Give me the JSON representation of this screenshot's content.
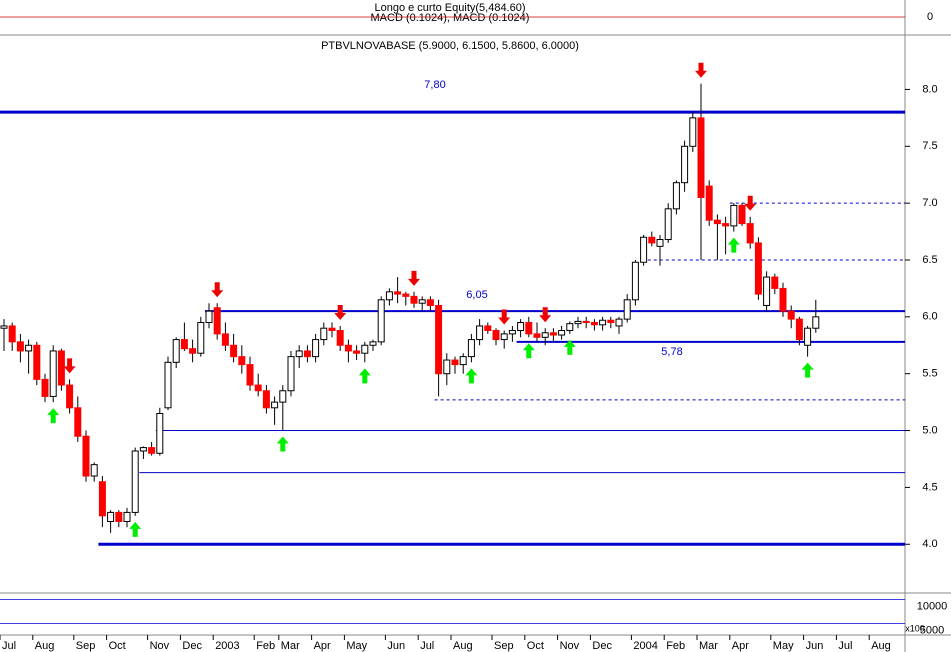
{
  "chart_data": {
    "type": "candlestick",
    "title": "PTBVLNOVABASE (5.9000, 6.1500, 5.8600, 6.0000)",
    "categories": [
      "Jul",
      null,
      null,
      null,
      "Aug",
      null,
      null,
      null,
      null,
      "Sep",
      null,
      null,
      null,
      "Oct",
      null,
      null,
      null,
      null,
      "Nov",
      null,
      null,
      null,
      "Dec",
      null,
      null,
      null,
      "2003",
      null,
      null,
      null,
      null,
      "Feb",
      null,
      null,
      "Mar",
      null,
      null,
      null,
      "Apr",
      null,
      null,
      null,
      "May",
      null,
      null,
      null,
      null,
      "Jun",
      null,
      null,
      null,
      "Jul",
      null,
      null,
      null,
      "Aug",
      null,
      null,
      null,
      null,
      "Sep",
      null,
      null,
      null,
      "Oct",
      null,
      null,
      null,
      "Nov",
      null,
      null,
      null,
      "Dec",
      null,
      null,
      null,
      null,
      "2004",
      null,
      null,
      null,
      "Feb",
      null,
      null,
      null,
      "Mar",
      null,
      null,
      null,
      "Apr",
      null,
      null,
      null,
      null,
      "May",
      null,
      null,
      null,
      "Jun",
      null,
      null,
      null,
      "Jul",
      null,
      null,
      null,
      "Aug",
      null,
      null,
      null
    ],
    "open": [
      5.9,
      5.92,
      5.78,
      5.7,
      5.75,
      5.45,
      5.3,
      5.7,
      5.4,
      5.2,
      4.95,
      4.6,
      4.55,
      4.2,
      4.28,
      4.2,
      4.28,
      4.82,
      4.85,
      4.8,
      5.2,
      5.6,
      5.8,
      5.72,
      5.68,
      5.95,
      6.08,
      5.85,
      5.75,
      5.65,
      5.58,
      5.4,
      5.35,
      5.2,
      5.25,
      5.35,
      5.65,
      5.7,
      5.65,
      5.8,
      5.9,
      5.88,
      5.75,
      5.7,
      5.68,
      5.75,
      5.78,
      6.15,
      6.22,
      6.2,
      6.18,
      6.12,
      6.15,
      6.1,
      5.5,
      5.62,
      5.58,
      5.65,
      5.8,
      5.92,
      5.88,
      5.8,
      5.85,
      5.88,
      5.95,
      5.85,
      5.82,
      5.86,
      5.84,
      5.88,
      5.94,
      5.96,
      5.95,
      5.93,
      5.97,
      5.92,
      5.98,
      6.15,
      6.48,
      6.7,
      6.62,
      6.68,
      6.95,
      7.18,
      7.5,
      7.75,
      7.15,
      6.85,
      6.82,
      6.8,
      6.98,
      6.82,
      6.65,
      6.1,
      6.35,
      6.25,
      6.05,
      5.98,
      5.75,
      5.9,
      null,
      null,
      null,
      null,
      null,
      null,
      null,
      null,
      null,
      null
    ],
    "high": [
      5.98,
      5.95,
      5.85,
      5.8,
      5.78,
      5.5,
      5.75,
      5.72,
      5.45,
      5.3,
      5.0,
      4.72,
      4.6,
      4.3,
      4.3,
      4.32,
      4.85,
      4.86,
      4.9,
      5.2,
      5.65,
      5.82,
      5.95,
      5.8,
      6.0,
      6.12,
      6.12,
      5.95,
      5.85,
      5.75,
      5.65,
      5.5,
      5.4,
      5.3,
      5.4,
      5.7,
      5.75,
      5.75,
      5.85,
      5.95,
      5.95,
      5.92,
      5.8,
      5.75,
      5.78,
      5.8,
      6.18,
      6.25,
      6.35,
      6.22,
      6.22,
      6.18,
      6.18,
      6.15,
      5.68,
      5.65,
      5.68,
      5.85,
      5.98,
      5.95,
      5.9,
      5.88,
      5.92,
      5.98,
      6.0,
      5.95,
      5.9,
      5.9,
      5.92,
      5.96,
      6.0,
      6.0,
      5.98,
      6.0,
      6.0,
      6.0,
      6.2,
      6.5,
      6.72,
      6.75,
      6.72,
      7.0,
      7.2,
      7.55,
      7.8,
      8.05,
      7.2,
      6.9,
      6.88,
      7.0,
      7.0,
      6.88,
      6.7,
      6.4,
      6.38,
      6.3,
      6.1,
      6.0,
      5.92,
      6.15,
      null,
      null,
      null,
      null,
      null,
      null,
      null,
      null,
      null,
      null
    ],
    "low": [
      5.7,
      5.7,
      5.6,
      5.5,
      5.4,
      5.25,
      5.25,
      5.35,
      5.15,
      4.9,
      4.55,
      4.55,
      4.15,
      4.1,
      4.15,
      4.15,
      4.25,
      4.75,
      4.78,
      4.78,
      5.18,
      5.55,
      5.7,
      5.6,
      5.65,
      5.9,
      5.8,
      5.7,
      5.6,
      5.5,
      5.35,
      5.3,
      5.15,
      5.05,
      5.0,
      5.3,
      5.55,
      5.6,
      5.6,
      5.75,
      5.82,
      5.7,
      5.6,
      5.62,
      5.6,
      5.7,
      5.75,
      6.1,
      6.12,
      6.1,
      6.08,
      6.05,
      6.05,
      5.3,
      5.4,
      5.5,
      5.5,
      5.6,
      5.75,
      5.85,
      5.75,
      5.72,
      5.78,
      5.82,
      5.82,
      5.78,
      5.75,
      5.78,
      5.8,
      5.85,
      5.9,
      5.9,
      5.88,
      5.88,
      5.9,
      5.85,
      5.95,
      6.1,
      6.45,
      6.62,
      6.45,
      6.65,
      6.9,
      7.1,
      7.45,
      6.5,
      6.8,
      6.5,
      6.55,
      6.75,
      6.8,
      6.6,
      6.15,
      6.05,
      6.2,
      6.0,
      5.9,
      5.75,
      5.65,
      5.86,
      null,
      null,
      null,
      null,
      null,
      null,
      null,
      null,
      null,
      null
    ],
    "close": [
      5.92,
      5.78,
      5.7,
      5.75,
      5.45,
      5.3,
      5.7,
      5.4,
      5.2,
      4.95,
      4.6,
      4.7,
      4.25,
      4.28,
      4.2,
      4.28,
      4.82,
      4.85,
      4.8,
      5.15,
      5.6,
      5.8,
      5.72,
      5.68,
      5.95,
      6.05,
      5.85,
      5.75,
      5.65,
      5.58,
      5.4,
      5.35,
      5.2,
      5.25,
      5.35,
      5.65,
      5.7,
      5.65,
      5.8,
      5.9,
      5.88,
      5.75,
      5.7,
      5.68,
      5.75,
      5.78,
      6.15,
      6.22,
      6.2,
      6.18,
      6.12,
      6.15,
      6.1,
      5.5,
      5.62,
      5.58,
      5.65,
      5.8,
      5.92,
      5.88,
      5.8,
      5.85,
      5.88,
      5.95,
      5.85,
      5.82,
      5.86,
      5.84,
      5.88,
      5.94,
      5.96,
      5.95,
      5.93,
      5.97,
      5.95,
      5.98,
      6.15,
      6.48,
      6.7,
      6.65,
      6.68,
      6.95,
      7.18,
      7.5,
      7.75,
      7.05,
      6.85,
      6.82,
      6.8,
      6.98,
      6.82,
      6.65,
      6.2,
      6.35,
      6.25,
      6.05,
      5.98,
      5.8,
      5.9,
      6.0,
      null,
      null,
      null,
      null,
      null,
      null,
      null,
      null,
      null,
      null
    ],
    "up_color": "#ffffff",
    "down_color": "#ff0000",
    "outline_color": "#000000",
    "ylim": [
      3.58,
      8.47
    ],
    "yticks": [
      {
        "value": 4,
        "label": "4.0"
      },
      4.5,
      {
        "value": 5,
        "label": "5.0"
      },
      5.5,
      {
        "value": 6,
        "label": "6.0"
      },
      6.5,
      {
        "value": 7,
        "label": "7.0"
      },
      7.5,
      {
        "value": 8,
        "label": "8.0"
      }
    ],
    "level_color": "#0000cc",
    "levels": [
      {
        "value": 7.8,
        "label": "7,80",
        "style": "thick"
      },
      {
        "value": 4,
        "style": "thick"
      },
      {
        "value": 6.05,
        "label": "6,05",
        "style": "medium"
      },
      {
        "value": 5.78,
        "label": "5,78",
        "style": "medium"
      },
      {
        "value": 5,
        "style": "thin"
      },
      {
        "value": 4.63,
        "style": "thin"
      },
      {
        "value": 7,
        "style": "dashed"
      },
      {
        "value": 6.5,
        "style": "dashed"
      },
      {
        "value": 5.27,
        "style": "dashed"
      }
    ],
    "macd_panel": {
      "title": "Longo e curto Equity(5,484.60)",
      "subtitle": "MACD (0.1024), MACD (0.1024)",
      "ylim": [
        -0.5,
        0.5
      ],
      "yticks": [
        0
      ]
    },
    "volume_panel": {
      "ylim": [
        2000,
        12000
      ],
      "yticks": [
        10000,
        5000
      ],
      "unit": "x100"
    }
  }
}
